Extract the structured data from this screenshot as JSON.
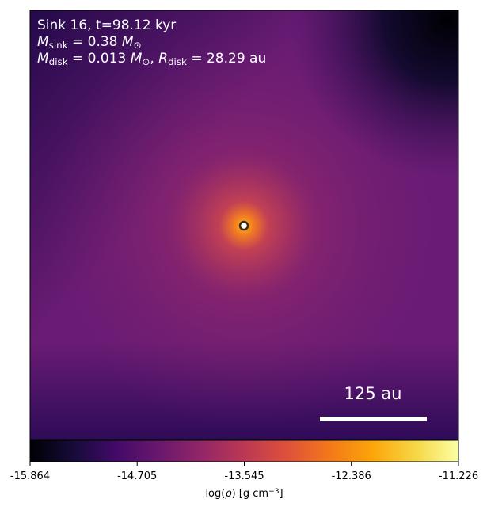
{
  "chart_data": {
    "type": "image",
    "annotation_lines": [
      [
        {
          "text": "Sink 16, t=98.12 kyr"
        }
      ],
      [
        {
          "text": "M",
          "italic": true
        },
        {
          "text": "sink",
          "shift": "sub"
        },
        {
          "text": " = 0.38 "
        },
        {
          "text": "M",
          "italic": true
        },
        {
          "text": "⊙",
          "shift": "sub"
        }
      ],
      [
        {
          "text": "M",
          "italic": true
        },
        {
          "text": "disk",
          "shift": "sub"
        },
        {
          "text": " = 0.013 "
        },
        {
          "text": "M",
          "italic": true
        },
        {
          "text": "⊙",
          "shift": "sub"
        },
        {
          "text": ", "
        },
        {
          "text": "R",
          "italic": true
        },
        {
          "text": "disk",
          "shift": "sub"
        },
        {
          "text": " = 28.29 au"
        }
      ]
    ],
    "scale_bar_label": "125 au",
    "colorbar": {
      "label": [
        {
          "text": "log("
        },
        {
          "text": "ρ",
          "italic": true
        },
        {
          "text": ") [g cm"
        },
        {
          "text": "−3",
          "shift": "super"
        },
        {
          "text": "]"
        }
      ],
      "clim": [
        -15.864,
        -11.226
      ],
      "ticks": [
        -15.864,
        -14.705,
        -13.545,
        -12.386,
        -11.226
      ]
    }
  }
}
